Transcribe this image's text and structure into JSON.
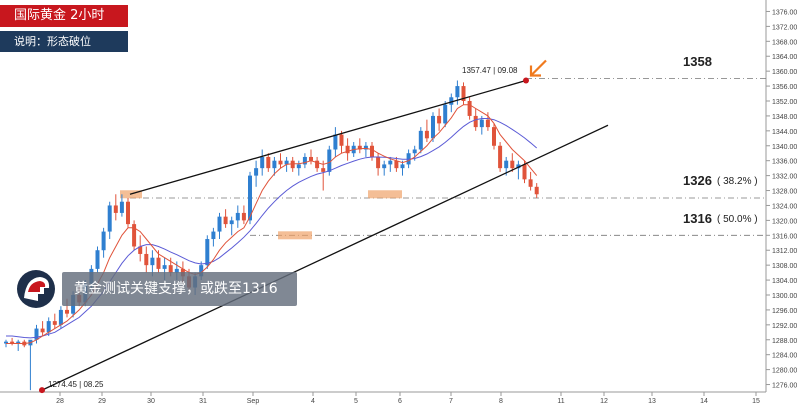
{
  "header": {
    "title": "国际黄金  2小时",
    "subtitle": "说明：形态破位"
  },
  "callout": {
    "text": "黄金测试关键支撑，或跌至1316"
  },
  "levels": {
    "l1358": "1358",
    "l1326": "1326",
    "l1326_pct": "( 38.2% )",
    "l1316": "1316",
    "l1316_pct": "( 50.0% )"
  },
  "annotations": {
    "high": "1357.47 | 09.08",
    "low": "1274.45 | 08.25"
  },
  "colors": {
    "up": "#2f7fd0",
    "down": "#e0533a",
    "ma_fast": "#e0533a",
    "ma_slow": "#5b5bd6",
    "title_bg": "#c8171e",
    "subtitle_bg": "#1e3a5c",
    "highlight": "#f0a36a",
    "arrow": "#f07a1e"
  },
  "chart_data": {
    "type": "candlestick",
    "y_axis_ticks": [
      "1376.00",
      "1372.00",
      "1368.00",
      "1364.00",
      "1360.00",
      "1356.00",
      "1352.00",
      "1348.00",
      "1344.00",
      "1340.00",
      "1336.00",
      "1332.00",
      "1328.00",
      "1324.00",
      "1320.00",
      "1316.00",
      "1312.00",
      "1308.00",
      "1304.00",
      "1300.00",
      "1296.00",
      "1292.00",
      "1288.00",
      "1284.00",
      "1280.00",
      "1276.00"
    ],
    "x_axis_ticks": [
      "28",
      "29",
      "30",
      "31",
      "Sep",
      "4",
      "5",
      "6",
      "7",
      "8",
      "11",
      "12",
      "13",
      "14",
      "15"
    ],
    "ylim": [
      1274,
      1378
    ],
    "candles": [
      [
        1287,
        1288,
        1286,
        1287.5
      ],
      [
        1287.5,
        1288.5,
        1286.5,
        1287
      ],
      [
        1287,
        1288,
        1285,
        1287.5
      ],
      [
        1287.5,
        1288,
        1286,
        1286.5
      ],
      [
        1286.5,
        1287,
        1274.5,
        1288
      ],
      [
        1288,
        1292,
        1287,
        1291
      ],
      [
        1291,
        1293,
        1289,
        1290
      ],
      [
        1290,
        1294,
        1289,
        1293
      ],
      [
        1293,
        1295,
        1291,
        1292
      ],
      [
        1292,
        1297,
        1291,
        1296
      ],
      [
        1296,
        1299,
        1294,
        1295
      ],
      [
        1295,
        1301,
        1294,
        1300
      ],
      [
        1300,
        1302,
        1297,
        1298
      ],
      [
        1298,
        1304,
        1297,
        1303
      ],
      [
        1303,
        1308,
        1301,
        1307
      ],
      [
        1307,
        1313,
        1306,
        1312
      ],
      [
        1312,
        1318,
        1310,
        1317
      ],
      [
        1317,
        1325,
        1315,
        1324
      ],
      [
        1324,
        1327,
        1320,
        1322
      ],
      [
        1322,
        1327,
        1321,
        1325
      ],
      [
        1325,
        1326,
        1318,
        1319
      ],
      [
        1319,
        1320,
        1312,
        1313
      ],
      [
        1313,
        1316,
        1309,
        1311
      ],
      [
        1311,
        1313,
        1306,
        1308
      ],
      [
        1308,
        1312,
        1305,
        1310
      ],
      [
        1310,
        1312,
        1306,
        1307
      ],
      [
        1307,
        1310,
        1304,
        1308
      ],
      [
        1308,
        1310,
        1305,
        1306
      ],
      [
        1306,
        1309,
        1304,
        1307
      ],
      [
        1307,
        1309,
        1303,
        1305
      ],
      [
        1305,
        1307,
        1301,
        1302
      ],
      [
        1302,
        1306,
        1300,
        1305
      ],
      [
        1305,
        1309,
        1304,
        1308
      ],
      [
        1308,
        1316,
        1307,
        1315
      ],
      [
        1315,
        1318,
        1313,
        1317
      ],
      [
        1317,
        1322,
        1315,
        1321
      ],
      [
        1321,
        1323,
        1318,
        1319
      ],
      [
        1319,
        1321,
        1316,
        1320
      ],
      [
        1320,
        1324,
        1318,
        1322
      ],
      [
        1322,
        1324,
        1319,
        1320
      ],
      [
        1320,
        1333,
        1319,
        1332
      ],
      [
        1332,
        1336,
        1329,
        1334
      ],
      [
        1334,
        1339,
        1332,
        1337
      ],
      [
        1337,
        1338,
        1333,
        1334
      ],
      [
        1334,
        1337,
        1332,
        1336
      ],
      [
        1336,
        1338,
        1334,
        1335
      ],
      [
        1335,
        1337,
        1333,
        1336
      ],
      [
        1336,
        1337,
        1333,
        1334
      ],
      [
        1334,
        1336,
        1332,
        1335
      ],
      [
        1335,
        1338,
        1334,
        1337
      ],
      [
        1337,
        1339,
        1335,
        1336
      ],
      [
        1336,
        1337,
        1333,
        1334
      ],
      [
        1334,
        1336,
        1328,
        1333
      ],
      [
        1333,
        1340,
        1332,
        1339
      ],
      [
        1339,
        1345,
        1337,
        1343
      ],
      [
        1343,
        1344,
        1338,
        1340
      ],
      [
        1340,
        1342,
        1336,
        1338
      ],
      [
        1338,
        1341,
        1337,
        1340
      ],
      [
        1340,
        1342,
        1338,
        1339
      ],
      [
        1339,
        1341,
        1337,
        1340
      ],
      [
        1340,
        1341,
        1336,
        1337
      ],
      [
        1337,
        1338,
        1332,
        1334
      ],
      [
        1334,
        1336,
        1332,
        1335
      ],
      [
        1335,
        1337,
        1333,
        1336
      ],
      [
        1336,
        1337,
        1333,
        1334
      ],
      [
        1334,
        1336,
        1332,
        1335
      ],
      [
        1335,
        1339,
        1334,
        1338
      ],
      [
        1338,
        1340,
        1336,
        1339
      ],
      [
        1339,
        1345,
        1338,
        1344
      ],
      [
        1344,
        1347,
        1341,
        1342
      ],
      [
        1342,
        1349,
        1341,
        1348
      ],
      [
        1348,
        1350,
        1344,
        1346
      ],
      [
        1346,
        1352,
        1345,
        1351
      ],
      [
        1351,
        1354,
        1349,
        1353
      ],
      [
        1353,
        1357.5,
        1351,
        1356
      ],
      [
        1356,
        1357,
        1351,
        1352
      ],
      [
        1352,
        1353,
        1347,
        1348
      ],
      [
        1348,
        1350,
        1344,
        1345
      ],
      [
        1345,
        1348,
        1343,
        1347
      ],
      [
        1347,
        1349,
        1344,
        1345
      ],
      [
        1345,
        1346,
        1339,
        1340
      ],
      [
        1340,
        1341,
        1333,
        1334
      ],
      [
        1334,
        1337,
        1332,
        1336
      ],
      [
        1336,
        1338,
        1333,
        1334
      ],
      [
        1334,
        1336,
        1331,
        1335
      ],
      [
        1335,
        1336,
        1330,
        1331
      ],
      [
        1331,
        1333,
        1328,
        1329
      ],
      [
        1329,
        1330,
        1326,
        1327
      ]
    ],
    "ma_fast_values": [
      1287,
      1287,
      1287,
      1287,
      1287.2,
      1288,
      1289,
      1290,
      1291,
      1292,
      1293,
      1294.5,
      1296,
      1298,
      1300,
      1303,
      1306,
      1310,
      1313,
      1316,
      1318,
      1318,
      1317,
      1315,
      1313,
      1311,
      1310,
      1309,
      1308,
      1307,
      1306,
      1305.5,
      1306,
      1307.5,
      1309.5,
      1312,
      1314,
      1315.5,
      1317,
      1318,
      1321,
      1324.5,
      1328,
      1330.5,
      1332.5,
      1334,
      1335,
      1335.2,
      1335.2,
      1335.5,
      1336,
      1335.5,
      1335,
      1335.5,
      1337,
      1338,
      1338.5,
      1339,
      1339.2,
      1339.3,
      1339,
      1338,
      1337.2,
      1336.5,
      1336,
      1335.5,
      1336,
      1337,
      1338.5,
      1340,
      1342,
      1343.5,
      1345.5,
      1347.5,
      1350,
      1351,
      1351,
      1350,
      1349,
      1348,
      1346,
      1343,
      1341,
      1339,
      1337.5,
      1336,
      1334,
      1332
    ],
    "ma_slow_values": [
      1289,
      1289,
      1288.8,
      1288.6,
      1288.5,
      1288.7,
      1289,
      1289.5,
      1290,
      1291,
      1292,
      1293,
      1294,
      1295.5,
      1297,
      1299,
      1301,
      1303.5,
      1306,
      1308.5,
      1310.5,
      1312,
      1313,
      1313.5,
      1313.5,
      1313,
      1312.3,
      1311.5,
      1310.8,
      1310,
      1309.2,
      1308.6,
      1308.3,
      1308.5,
      1309,
      1310,
      1311.3,
      1312.6,
      1314,
      1315.5,
      1317.2,
      1319.2,
      1321.3,
      1323.3,
      1325,
      1326.6,
      1328,
      1329.2,
      1330.2,
      1331,
      1331.8,
      1332.4,
      1332.8,
      1333.3,
      1334,
      1334.7,
      1335.3,
      1335.9,
      1336.4,
      1336.8,
      1337,
      1337,
      1336.9,
      1336.8,
      1336.6,
      1336.4,
      1336.4,
      1336.6,
      1337.1,
      1337.8,
      1338.7,
      1339.7,
      1340.9,
      1342.3,
      1343.8,
      1345.2,
      1346.3,
      1347,
      1347.3,
      1347.3,
      1347,
      1346.3,
      1345.4,
      1344.4,
      1343.3,
      1342.1,
      1340.8,
      1339.4
    ]
  }
}
